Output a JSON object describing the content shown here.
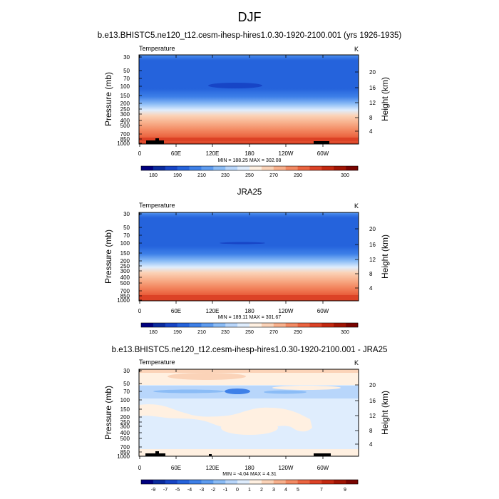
{
  "figure": {
    "title": "DJF",
    "label_min": "MIN =",
    "label_max": "MAX ="
  },
  "chart_data": [
    {
      "type": "heatmap",
      "title": "b.e13.BHISTC5.ne120_t12.cesm-ihesp-hires1.0.30-1920-2100.001 (yrs 1926-1935)",
      "subtitle_left": "Temperature",
      "subtitle_right": "K",
      "ylabel": "Pressure (mb)",
      "ylabel_right": "Height (km)",
      "x_ticks": [
        "0",
        "60E",
        "120E",
        "180",
        "120W",
        "60W"
      ],
      "y_ticks": [
        "30",
        "50",
        "70",
        "100",
        "150",
        "200",
        "250",
        "300",
        "400",
        "500",
        "700",
        "850",
        "1000"
      ],
      "y_right_ticks": [
        "20",
        "16",
        "12",
        "8",
        "4"
      ],
      "min": "188.25",
      "max": "302.08",
      "colorbar_levels": [
        "180",
        "190",
        "210",
        "230",
        "250",
        "270",
        "290",
        "300"
      ],
      "colors": [
        "#00007f",
        "#0a2b9e",
        "#1745c6",
        "#2563dc",
        "#3e80e8",
        "#5e9cf0",
        "#8bbcf6",
        "#b8d6fb",
        "#dfedfd",
        "#fff0e1",
        "#fbd3b8",
        "#f8b08c",
        "#f38a63",
        "#eb6440",
        "#dc4226",
        "#c32810",
        "#a11404",
        "#7a0401"
      ]
    },
    {
      "type": "heatmap",
      "title": "JRA25",
      "subtitle_left": "Temperature",
      "subtitle_right": "K",
      "ylabel": "Pressure (mb)",
      "ylabel_right": "Height (km)",
      "x_ticks": [
        "0",
        "60E",
        "120E",
        "180",
        "120W",
        "60W"
      ],
      "y_ticks": [
        "30",
        "50",
        "70",
        "100",
        "150",
        "200",
        "250",
        "300",
        "400",
        "500",
        "700",
        "850",
        "1000"
      ],
      "y_right_ticks": [
        "20",
        "16",
        "12",
        "8",
        "4"
      ],
      "min": "189.11",
      "max": "301.67",
      "colorbar_levels": [
        "180",
        "190",
        "210",
        "230",
        "250",
        "270",
        "290",
        "300"
      ],
      "colors": [
        "#00007f",
        "#0a2b9e",
        "#1745c6",
        "#2563dc",
        "#3e80e8",
        "#5e9cf0",
        "#8bbcf6",
        "#b8d6fb",
        "#dfedfd",
        "#fff0e1",
        "#fbd3b8",
        "#f8b08c",
        "#f38a63",
        "#eb6440",
        "#dc4226",
        "#c32810",
        "#a11404",
        "#7a0401"
      ]
    },
    {
      "type": "heatmap",
      "title": "b.e13.BHISTC5.ne120_t12.cesm-ihesp-hires1.0.30-1920-2100.001 - JRA25",
      "subtitle_left": "Temperature",
      "subtitle_right": "K",
      "ylabel": "Pressure (mb)",
      "ylabel_right": "Height (km)",
      "x_ticks": [
        "0",
        "60E",
        "120E",
        "180",
        "120W",
        "60W"
      ],
      "y_ticks": [
        "30",
        "50",
        "70",
        "100",
        "150",
        "200",
        "250",
        "300",
        "400",
        "500",
        "700",
        "850",
        "1000"
      ],
      "y_right_ticks": [
        "20",
        "16",
        "12",
        "8",
        "4"
      ],
      "min": "-4.04",
      "max": "4.31",
      "colorbar_levels": [
        "-9",
        "-7",
        "-5",
        "-4",
        "-3",
        "-2",
        "-1",
        "0",
        "1",
        "2",
        "3",
        "4",
        "5",
        "7",
        "9"
      ],
      "colors": [
        "#00007f",
        "#0a2b9e",
        "#1745c6",
        "#2563dc",
        "#3e80e8",
        "#5e9cf0",
        "#8bbcf6",
        "#b8d6fb",
        "#dfedfd",
        "#fff0e1",
        "#fbd3b8",
        "#f8b08c",
        "#f38a63",
        "#eb6440",
        "#dc4226",
        "#c32810",
        "#a11404",
        "#7a0401"
      ]
    }
  ]
}
